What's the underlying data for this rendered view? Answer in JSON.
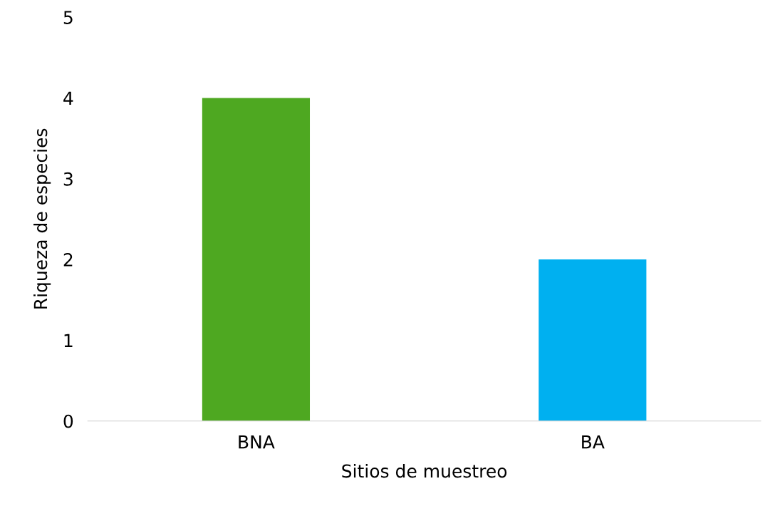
{
  "chart_data": {
    "type": "bar",
    "xlabel": "Sitios de muestreo",
    "ylabel": "Riqueza de especies",
    "categories": [
      "BNA",
      "BA"
    ],
    "values": [
      4,
      2
    ],
    "colors": [
      "#4ea821",
      "#00b0f0"
    ],
    "ylim": [
      0,
      5
    ],
    "yticks": [
      0,
      1,
      2,
      3,
      4,
      5
    ],
    "grid": false,
    "legend": false
  }
}
